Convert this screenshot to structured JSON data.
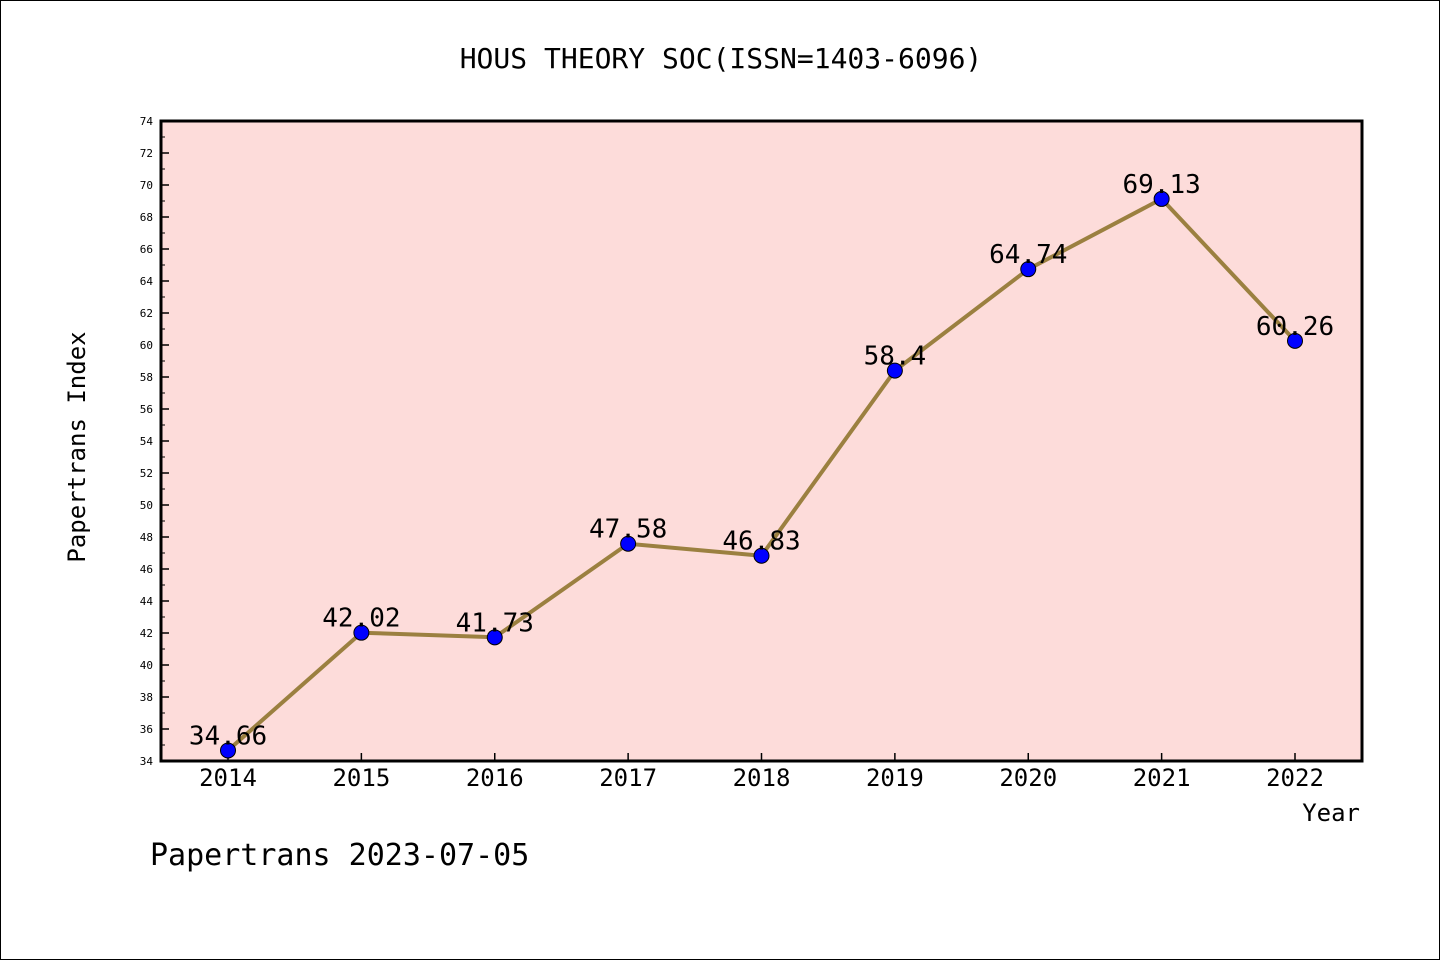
{
  "chart_data": {
    "type": "line",
    "title": "HOUS THEORY SOC(ISSN=1403-6096)",
    "xlabel": "Year",
    "ylabel": "Papertrans Index",
    "categories": [
      "2014",
      "2015",
      "2016",
      "2017",
      "2018",
      "2019",
      "2020",
      "2021",
      "2022"
    ],
    "values": [
      34.66,
      42.02,
      41.73,
      47.58,
      46.83,
      58.4,
      64.74,
      69.13,
      60.26
    ],
    "data_labels": [
      "34.66",
      "42.02",
      "41.73",
      "47.58",
      "46.83",
      "58.4",
      "64.74",
      "69.13",
      "60.26"
    ],
    "ylim": [
      34,
      74
    ],
    "yticks": [
      "34",
      "36",
      "38",
      "40",
      "42",
      "44",
      "46",
      "48",
      "50",
      "52",
      "54",
      "56",
      "58",
      "60",
      "62",
      "64",
      "66",
      "68",
      "70",
      "72",
      "74"
    ],
    "grid": false,
    "legend": "none",
    "colors": {
      "plot_background": "#FDDCDA",
      "line": "#9B8040",
      "marker": "#0000FF"
    }
  },
  "footer": "Papertrans 2023-07-05"
}
